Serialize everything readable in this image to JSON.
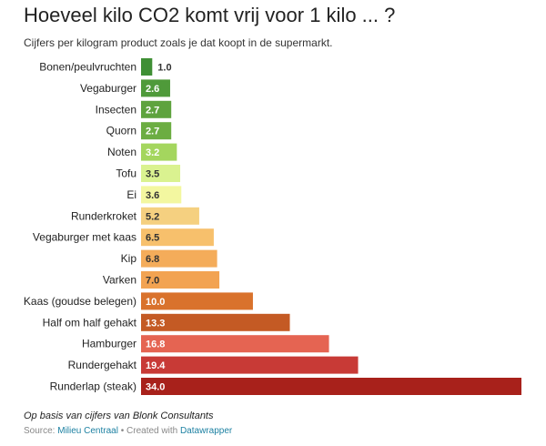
{
  "title": "Hoeveel kilo CO2 komt vrij voor 1 kilo ... ?",
  "subtitle": "Cijfers per kilogram product zoals je dat koopt in de supermarkt.",
  "chart_data": {
    "type": "bar",
    "orientation": "horizontal",
    "categories": [
      "Bonen/peulvruchten",
      "Vegaburger",
      "Insecten",
      "Quorn",
      "Noten",
      "Tofu",
      "Ei",
      "Runderkroket",
      "Vegaburger met kaas",
      "Kip",
      "Varken",
      "Kaas (goudse belegen)",
      "Half om half gehakt",
      "Hamburger",
      "Rundergehakt",
      "Runderlap (steak)"
    ],
    "values": [
      1.0,
      2.6,
      2.7,
      2.7,
      3.2,
      3.5,
      3.6,
      5.2,
      6.5,
      6.8,
      7.0,
      10.0,
      13.3,
      16.8,
      19.4,
      34.0
    ],
    "value_labels": [
      "1.0",
      "2.6",
      "2.7",
      "2.7",
      "3.2",
      "3.5",
      "3.6",
      "5.2",
      "6.5",
      "6.8",
      "7.0",
      "10.0",
      "13.3",
      "16.8",
      "19.4",
      "34.0"
    ],
    "colors": [
      "#3f8f35",
      "#4f9a3a",
      "#5ea33e",
      "#6cad42",
      "#a4d65e",
      "#daf290",
      "#f3f7a0",
      "#f5d080",
      "#f7c06c",
      "#f4ac5a",
      "#f2a352",
      "#d9722c",
      "#c45a24",
      "#e56452",
      "#c83a36",
      "#a8211b"
    ],
    "xlim": [
      0,
      34
    ],
    "grid": false
  },
  "footer": {
    "note": "Op basis van cijfers van Blonk Consultants",
    "source_prefix": "Source:",
    "source_link": "Milieu Centraal",
    "separator": "•",
    "created_with": "Created with",
    "tool": "Datawrapper"
  }
}
